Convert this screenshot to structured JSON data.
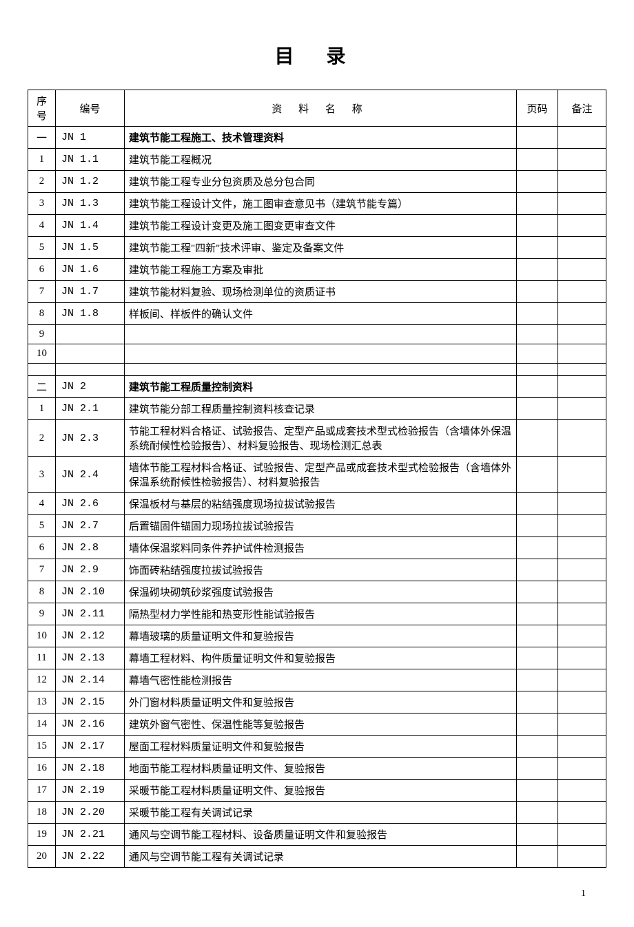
{
  "title": "目 录",
  "headers": {
    "seq": "序号",
    "code": "编号",
    "name": "资 料 名 称",
    "page": "页码",
    "note": "备注"
  },
  "section1": {
    "seq": "一",
    "code": "JN 1",
    "name": "建筑节能工程施工、技术管理资料",
    "rows": [
      {
        "seq": "1",
        "code": "JN 1.1",
        "name": "建筑节能工程概况"
      },
      {
        "seq": "2",
        "code": "JN 1.2",
        "name": "建筑节能工程专业分包资质及总分包合同"
      },
      {
        "seq": "3",
        "code": "JN 1.3",
        "name": "建筑节能工程设计文件，施工图审查意见书（建筑节能专篇）"
      },
      {
        "seq": "4",
        "code": "JN 1.4",
        "name": "建筑节能工程设计变更及施工图变更审查文件"
      },
      {
        "seq": "5",
        "code": "JN 1.5",
        "name": "建筑节能工程\"四新\"技术评审、鉴定及备案文件"
      },
      {
        "seq": "6",
        "code": "JN 1.6",
        "name": "建筑节能工程施工方案及审批"
      },
      {
        "seq": "7",
        "code": "JN 1.7",
        "name": "建筑节能材料复验、现场检测单位的资质证书"
      },
      {
        "seq": "8",
        "code": "JN 1.8",
        "name": "样板间、样板件的确认文件"
      },
      {
        "seq": "9",
        "code": "",
        "name": ""
      },
      {
        "seq": "10",
        "code": "",
        "name": ""
      }
    ]
  },
  "section2": {
    "seq": "二",
    "code": "JN 2",
    "name": "建筑节能工程质量控制资料",
    "rows": [
      {
        "seq": "1",
        "code": "JN 2.1",
        "name": "建筑节能分部工程质量控制资料核查记录"
      },
      {
        "seq": "2",
        "code": "JN 2.3",
        "name": "节能工程材料合格证、试验报告、定型产品或成套技术型式检验报告（含墙体外保温系统耐候性检验报告）、材料复验报告、现场检测汇总表"
      },
      {
        "seq": "3",
        "code": "JN 2.4",
        "name": "墙体节能工程材料合格证、试验报告、定型产品或成套技术型式检验报告（含墙体外保温系统耐候性检验报告）、材料复验报告"
      },
      {
        "seq": "4",
        "code": "JN 2.6",
        "name": "保温板材与基层的粘结强度现场拉拔试验报告"
      },
      {
        "seq": "5",
        "code": "JN 2.7",
        "name": "后置锚固件锚固力现场拉拔试验报告"
      },
      {
        "seq": "6",
        "code": "JN 2.8",
        "name": "墙体保温浆料同条件养护试件检测报告"
      },
      {
        "seq": "7",
        "code": "JN 2.9",
        "name": "饰面砖粘结强度拉拔试验报告"
      },
      {
        "seq": "8",
        "code": "JN 2.10",
        "name": "保温砌块砌筑砂浆强度试验报告"
      },
      {
        "seq": "9",
        "code": "JN 2.11",
        "name": "隔热型材力学性能和热变形性能试验报告"
      },
      {
        "seq": "10",
        "code": "JN 2.12",
        "name": "幕墙玻璃的质量证明文件和复验报告"
      },
      {
        "seq": "11",
        "code": "JN 2.13",
        "name": "幕墙工程材料、构件质量证明文件和复验报告"
      },
      {
        "seq": "12",
        "code": "JN 2.14",
        "name": "幕墙气密性能检测报告"
      },
      {
        "seq": "13",
        "code": "JN 2.15",
        "name": "外门窗材料质量证明文件和复验报告"
      },
      {
        "seq": "14",
        "code": "JN 2.16",
        "name": "建筑外窗气密性、保温性能等复验报告"
      },
      {
        "seq": "15",
        "code": "JN 2.17",
        "name": "屋面工程材料质量证明文件和复验报告"
      },
      {
        "seq": "16",
        "code": "JN 2.18",
        "name": "地面节能工程材料质量证明文件、复验报告"
      },
      {
        "seq": "17",
        "code": "JN 2.19",
        "name": "采暖节能工程材料质量证明文件、复验报告"
      },
      {
        "seq": "18",
        "code": "JN 2.20",
        "name": "采暖节能工程有关调试记录"
      },
      {
        "seq": "19",
        "code": "JN 2.21",
        "name": "通风与空调节能工程材料、设备质量证明文件和复验报告"
      },
      {
        "seq": "20",
        "code": "JN 2.22",
        "name": "通风与空调节能工程有关调试记录"
      }
    ]
  },
  "pageNumber": "1"
}
